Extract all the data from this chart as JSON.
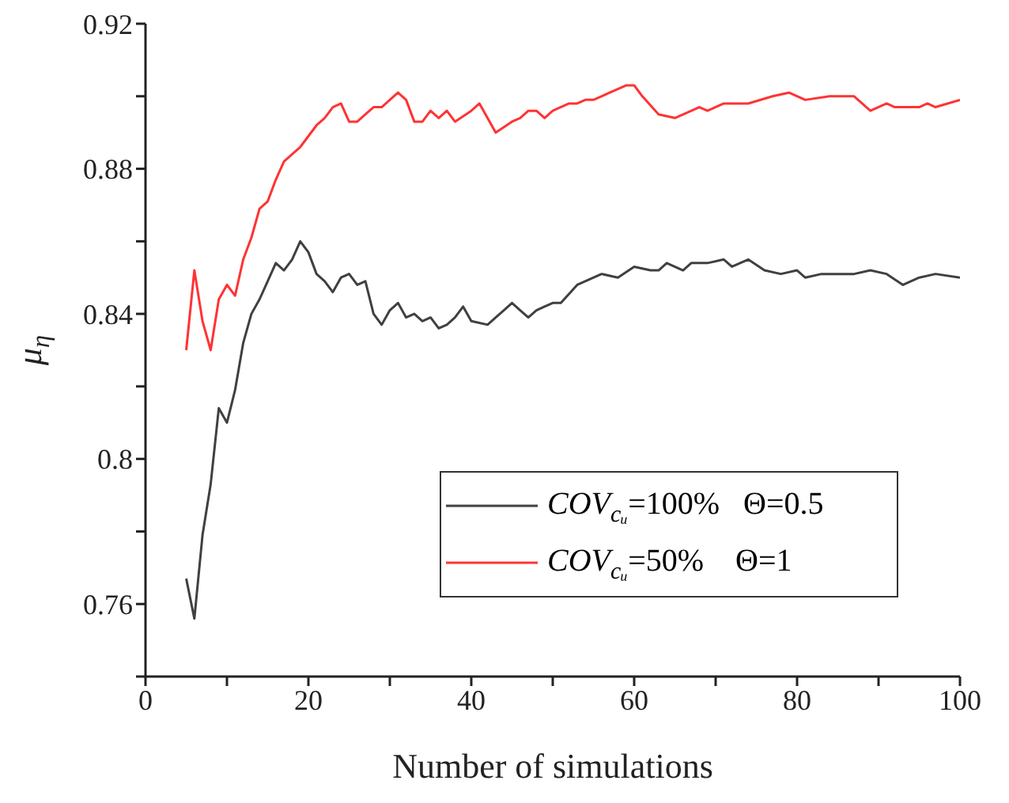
{
  "chart_data": {
    "type": "line",
    "xlabel": "Number of simulations",
    "ylabel": "μ$_{η}$",
    "xlim": [
      0,
      100
    ],
    "xticks": [
      0,
      {
        "value": 10,
        "label": null
      },
      20,
      {
        "value": 30,
        "label": null
      },
      40,
      {
        "value": 50,
        "label": null
      },
      60,
      {
        "value": 70,
        "label": null
      },
      80,
      {
        "value": 90,
        "label": null
      },
      100
    ],
    "ylim": [
      0.74,
      0.92
    ],
    "yticks": [
      {
        "value": 0.74,
        "label": null
      },
      0.76,
      {
        "value": 0.78,
        "label": null
      },
      0.8,
      {
        "value": 0.82,
        "label": null
      },
      0.84,
      {
        "value": 0.86,
        "label": null
      },
      0.88,
      {
        "value": 0.9,
        "label": null
      },
      0.92
    ],
    "grid": false,
    "legend": "bottom right",
    "marker": "none",
    "line_style": "solid",
    "series": [
      {
        "name": "COV$_{cᵤ}$=100%   Θ=0.5",
        "color": "#404040",
        "x": [
          5,
          6,
          7,
          8,
          9,
          10,
          11,
          12,
          13,
          14,
          15,
          16,
          17,
          18,
          19,
          20,
          21,
          22,
          23,
          24,
          25,
          26,
          27,
          28,
          29,
          30,
          31,
          32,
          33,
          34,
          35,
          36,
          37,
          38,
          39,
          40,
          42,
          43,
          44,
          45,
          46,
          47,
          48,
          49,
          50,
          51,
          53,
          56,
          58,
          60,
          62,
          63,
          64,
          66,
          67,
          69,
          71,
          72,
          74,
          76,
          78,
          80,
          81,
          83,
          84,
          87,
          89,
          91,
          93,
          95,
          97,
          100
        ],
        "values": [
          0.767,
          0.756,
          0.779,
          0.793,
          0.814,
          0.81,
          0.819,
          0.832,
          0.84,
          0.844,
          0.849,
          0.854,
          0.852,
          0.855,
          0.86,
          0.857,
          0.851,
          0.849,
          0.846,
          0.85,
          0.851,
          0.848,
          0.849,
          0.84,
          0.837,
          0.841,
          0.843,
          0.839,
          0.84,
          0.838,
          0.839,
          0.836,
          0.837,
          0.839,
          0.842,
          0.838,
          0.837,
          0.839,
          0.841,
          0.843,
          0.841,
          0.839,
          0.841,
          0.842,
          0.843,
          0.843,
          0.848,
          0.851,
          0.85,
          0.853,
          0.852,
          0.852,
          0.854,
          0.852,
          0.854,
          0.854,
          0.855,
          0.853,
          0.855,
          0.852,
          0.851,
          0.852,
          0.85,
          0.851,
          0.851,
          0.851,
          0.852,
          0.851,
          0.848,
          0.85,
          0.851,
          0.85
        ]
      },
      {
        "name": "COV$_{cᵤ}$=50%    Θ=1",
        "color": "#ff3333",
        "x": [
          5,
          6,
          7,
          8,
          9,
          10,
          11,
          12,
          13,
          14,
          15,
          16,
          17,
          18,
          19,
          20,
          21,
          22,
          23,
          24,
          25,
          26,
          27,
          28,
          29,
          30,
          31,
          32,
          33,
          34,
          35,
          36,
          37,
          38,
          40,
          41,
          43,
          45,
          46,
          47,
          48,
          49,
          50,
          52,
          53,
          54,
          55,
          57,
          59,
          60,
          61,
          63,
          65,
          68,
          69,
          71,
          74,
          77,
          79,
          81,
          84,
          85,
          87,
          89,
          91,
          92,
          95,
          96,
          97,
          100
        ],
        "values": [
          0.83,
          0.852,
          0.838,
          0.83,
          0.844,
          0.848,
          0.845,
          0.855,
          0.861,
          0.869,
          0.871,
          0.877,
          0.882,
          0.884,
          0.886,
          0.889,
          0.892,
          0.894,
          0.897,
          0.898,
          0.893,
          0.893,
          0.895,
          0.897,
          0.897,
          0.899,
          0.901,
          0.899,
          0.893,
          0.893,
          0.896,
          0.894,
          0.896,
          0.893,
          0.896,
          0.898,
          0.89,
          0.893,
          0.894,
          0.896,
          0.896,
          0.894,
          0.896,
          0.898,
          0.898,
          0.899,
          0.899,
          0.901,
          0.903,
          0.903,
          0.9,
          0.895,
          0.894,
          0.897,
          0.896,
          0.898,
          0.898,
          0.9,
          0.901,
          0.899,
          0.9,
          0.9,
          0.9,
          0.896,
          0.898,
          0.897,
          0.897,
          0.898,
          0.897,
          0.899
        ]
      }
    ]
  }
}
